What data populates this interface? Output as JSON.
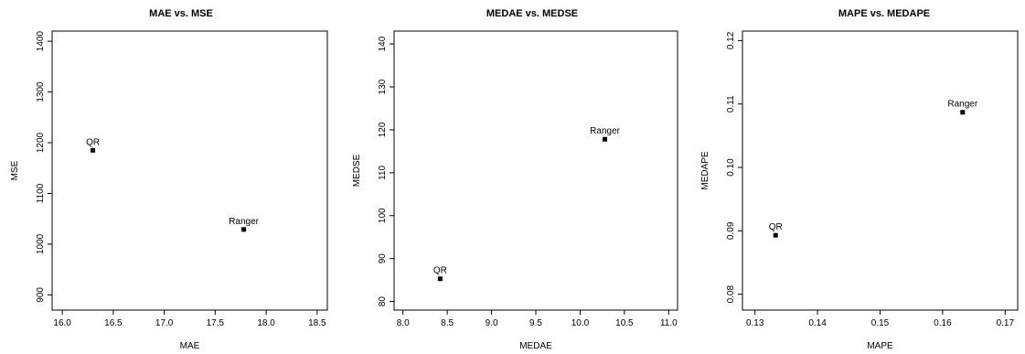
{
  "chart_data": [
    {
      "type": "scatter",
      "title": "MAE vs. MSE",
      "xlabel": "MAE",
      "ylabel": "MSE",
      "xlim": [
        15.9,
        18.6
      ],
      "ylim": [
        870,
        1420
      ],
      "xticks": [
        16.0,
        16.5,
        17.0,
        17.5,
        18.0,
        18.5
      ],
      "yticks": [
        900,
        1000,
        1100,
        1200,
        1300,
        1400
      ],
      "xtick_labels": [
        "16.0",
        "16.5",
        "17.0",
        "17.5",
        "18.0",
        "18.5"
      ],
      "ytick_labels": [
        "900",
        "1000",
        "1100",
        "1200",
        "1300",
        "1400"
      ],
      "grid": false,
      "points": [
        {
          "label": "QR",
          "x": 16.3,
          "y": 1185
        },
        {
          "label": "Ranger",
          "x": 17.78,
          "y": 1029
        }
      ]
    },
    {
      "type": "scatter",
      "title": "MEDAE vs. MEDSE",
      "xlabel": "MEDAE",
      "ylabel": "MEDSE",
      "xlim": [
        7.9,
        11.1
      ],
      "ylim": [
        78,
        143
      ],
      "xticks": [
        8.0,
        8.5,
        9.0,
        9.5,
        10.0,
        10.5,
        11.0
      ],
      "yticks": [
        80,
        90,
        100,
        110,
        120,
        130,
        140
      ],
      "xtick_labels": [
        "8.0",
        "8.5",
        "9.0",
        "9.5",
        "10.0",
        "10.5",
        "11.0"
      ],
      "ytick_labels": [
        "80",
        "90",
        "100",
        "110",
        "120",
        "130",
        "140"
      ],
      "grid": false,
      "points": [
        {
          "label": "QR",
          "x": 8.42,
          "y": 85.3
        },
        {
          "label": "Ranger",
          "x": 10.28,
          "y": 117.8
        }
      ]
    },
    {
      "type": "scatter",
      "title": "MAPE vs. MEDAPE",
      "xlabel": "MAPE",
      "ylabel": "MEDAPE",
      "xlim": [
        0.128,
        0.172
      ],
      "ylim": [
        0.0775,
        0.1215
      ],
      "xticks": [
        0.13,
        0.14,
        0.15,
        0.16,
        0.17
      ],
      "yticks": [
        0.08,
        0.09,
        0.1,
        0.11,
        0.12
      ],
      "xtick_labels": [
        "0.13",
        "0.14",
        "0.15",
        "0.16",
        "0.17"
      ],
      "ytick_labels": [
        "0.08",
        "0.09",
        "0.10",
        "0.11",
        "0.12"
      ],
      "grid": false,
      "points": [
        {
          "label": "QR",
          "x": 0.1333,
          "y": 0.0893
        },
        {
          "label": "Ranger",
          "x": 0.1632,
          "y": 0.1087
        }
      ]
    }
  ]
}
